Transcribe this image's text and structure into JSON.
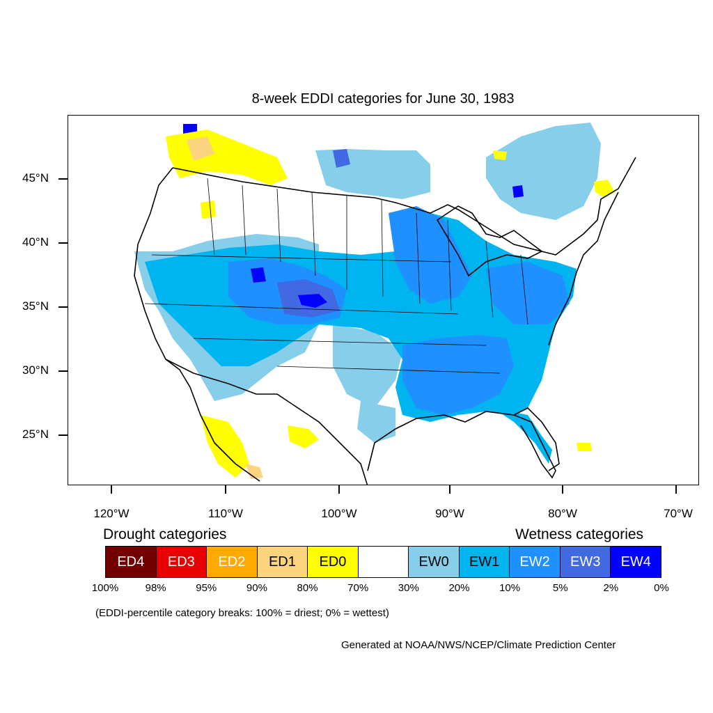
{
  "title": "8-week EDDI categories for June 30, 1983",
  "latitude_labels": [
    "45°N",
    "40°N",
    "35°N",
    "30°N",
    "25°N"
  ],
  "longitude_labels": [
    "120°W",
    "110°W",
    "100°W",
    "90°W",
    "80°W",
    "70°W"
  ],
  "legend": {
    "drought_heading": "Drought categories",
    "wetness_heading": "Wetness categories",
    "categories": [
      {
        "label": "ED4",
        "color": "#730000",
        "text_color": "#ffffff"
      },
      {
        "label": "ED3",
        "color": "#e60000",
        "text_color": "#ffffff"
      },
      {
        "label": "ED2",
        "color": "#ffaa00",
        "text_color": "#ffffff"
      },
      {
        "label": "ED1",
        "color": "#fcd37f",
        "text_color": "#000000"
      },
      {
        "label": "ED0",
        "color": "#ffff00",
        "text_color": "#000000"
      },
      {
        "label": "",
        "color": "#ffffff",
        "text_color": "#000000"
      },
      {
        "label": "EW0",
        "color": "#87ceeb",
        "text_color": "#000000"
      },
      {
        "label": "EW1",
        "color": "#00b4f0",
        "text_color": "#000000"
      },
      {
        "label": "EW2",
        "color": "#1e90ff",
        "text_color": "#ffffff"
      },
      {
        "label": "EW3",
        "color": "#4169e1",
        "text_color": "#ffffff"
      },
      {
        "label": "EW4",
        "color": "#0000ff",
        "text_color": "#ffffff"
      }
    ],
    "percent_breaks": [
      "100%",
      "98%",
      "95%",
      "90%",
      "80%",
      "70%",
      "30%",
      "20%",
      "10%",
      "5%",
      "2%",
      "0%"
    ]
  },
  "note": "(EDDI-percentile category breaks: 100% = driest; 0% = wettest)",
  "credit": "Generated at NOAA/NWS/NCEP/Climate Prediction Center"
}
